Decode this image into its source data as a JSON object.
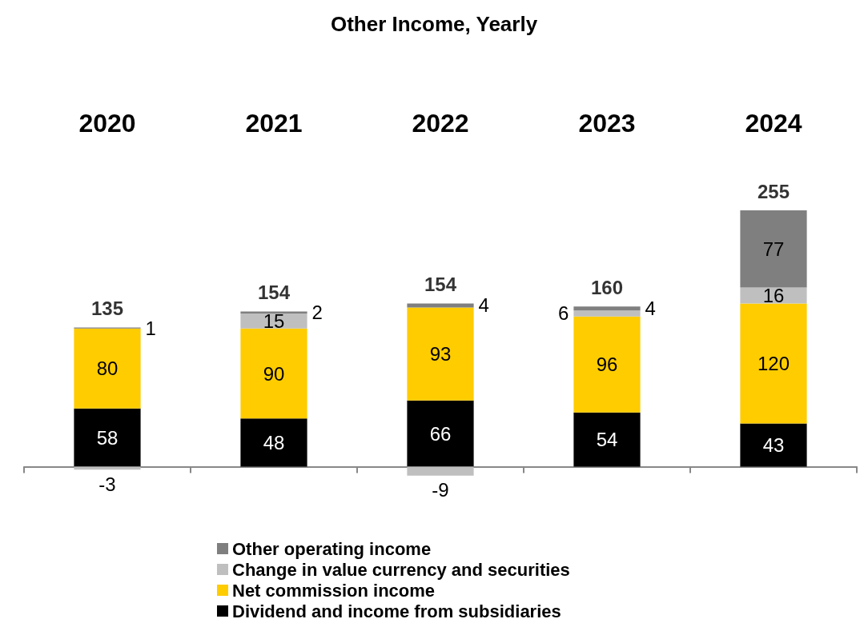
{
  "chart_data": {
    "type": "bar",
    "title": "Other Income, Yearly",
    "categories": [
      "2020",
      "2021",
      "2022",
      "2023",
      "2024"
    ],
    "stacked": true,
    "data_labels": true,
    "legend": "bottom",
    "grid": false,
    "series": [
      {
        "name": "Dividend and income from subsidiaries",
        "color": "#000000",
        "values": [
          58,
          48,
          66,
          54,
          43
        ]
      },
      {
        "name": "Net commission income",
        "color": "#ffcc00",
        "values": [
          80,
          90,
          93,
          96,
          120
        ]
      },
      {
        "name": "Change in value currency and securities",
        "color": "#bfbfbf",
        "values": [
          -3,
          15,
          -9,
          6,
          16
        ]
      },
      {
        "name": "Other operating income",
        "color": "#7f7f7f",
        "values": [
          1,
          2,
          4,
          4,
          77
        ]
      }
    ],
    "totals": [
      "135",
      "154",
      "154",
      "160",
      "255"
    ]
  }
}
